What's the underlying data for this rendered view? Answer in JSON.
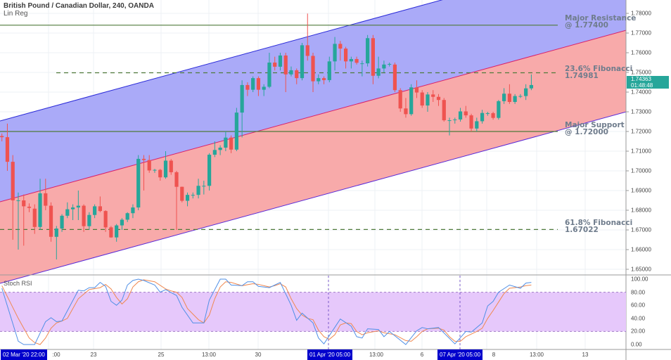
{
  "header": {
    "title": "British Pound / Canadian Dollar, 240, OANDA",
    "study": "Lin Reg"
  },
  "colors": {
    "up": "#26a69a",
    "down": "#ef5350",
    "channel_upper_fill": "#aaaaf8",
    "channel_lower_fill": "#f8aaaa",
    "level_line": "#4f7a3a",
    "note_text": "#6f7c8c",
    "stoch_k": "#4f8fe6",
    "stoch_d": "#f0884f",
    "stoch_band": "#e6c8fb",
    "time_highlight": "#0000cc"
  },
  "annotations": [
    {
      "line1": "Major Resistance",
      "line2": "@ 1.77400",
      "price": 1.774,
      "style": "solid"
    },
    {
      "line1": "23.6% Fibonacci",
      "line2": "1.74981",
      "price": 1.74981,
      "style": "dashed"
    },
    {
      "line1": "Major Support",
      "line2": "@ 1.72000",
      "price": 1.72,
      "style": "solid"
    },
    {
      "line1": "61.8% Fibonacci",
      "line2": "1.67022",
      "price": 1.67022,
      "style": "dashed"
    }
  ],
  "price_axis": {
    "ticks": [
      "1.78000",
      "1.77000",
      "1.76000",
      "1.75000",
      "1.74000",
      "1.73000",
      "1.72000",
      "1.71000",
      "1.70000",
      "1.69000",
      "1.68000",
      "1.67000",
      "1.66000",
      "1.65000"
    ],
    "last_price": "1.74363",
    "countdown": "01:48:48"
  },
  "stoch_axis": {
    "label": "Stoch RSI",
    "ticks": [
      "100.00",
      "80.00",
      "60.00",
      "40.00",
      "20.00",
      "0.00"
    ],
    "upper_band": 80,
    "lower_band": 20
  },
  "time_axis": {
    "ticks": [
      ":00",
      "23",
      "25",
      "13:00",
      "30",
      "13:00",
      "6",
      "8",
      "13:00",
      "13"
    ],
    "highlights": [
      "02 Mar '20  22:00",
      "01 Apr '20  05:00",
      "07 Apr '20  05:00"
    ]
  },
  "chart_data": {
    "type": "candlestick",
    "ylim": [
      1.6465,
      1.7868
    ],
    "candles_ohlc": [
      [
        1.7177,
        1.719,
        1.715,
        1.7171
      ],
      [
        1.7171,
        1.724,
        1.7,
        1.7046
      ],
      [
        1.7046,
        1.708,
        1.665,
        1.685
      ],
      [
        1.685,
        1.689,
        1.66,
        1.685
      ],
      [
        1.685,
        1.688,
        1.662,
        1.682
      ],
      [
        1.6818,
        1.6835,
        1.679,
        1.6812
      ],
      [
        1.6808,
        1.683,
        1.668,
        1.6715
      ],
      [
        1.6715,
        1.696,
        1.67,
        1.6886
      ],
      [
        1.6886,
        1.696,
        1.68,
        1.6823
      ],
      [
        1.6823,
        1.684,
        1.664,
        1.6665
      ],
      [
        1.6665,
        1.672,
        1.655,
        1.6707
      ],
      [
        1.6707,
        1.678,
        1.669,
        1.6772
      ],
      [
        1.6772,
        1.684,
        1.676,
        1.6805
      ],
      [
        1.6805,
        1.683,
        1.675,
        1.6814
      ],
      [
        1.6814,
        1.69,
        1.675,
        1.6823
      ],
      [
        1.6823,
        1.683,
        1.669,
        1.6719
      ],
      [
        1.6719,
        1.679,
        1.67,
        1.6776
      ],
      [
        1.6776,
        1.683,
        1.676,
        1.682
      ],
      [
        1.682,
        1.687,
        1.679,
        1.6796
      ],
      [
        1.6796,
        1.68,
        1.669,
        1.6713
      ],
      [
        1.6713,
        1.672,
        1.666,
        1.6662
      ],
      [
        1.6662,
        1.673,
        1.664,
        1.6723
      ],
      [
        1.6723,
        1.676,
        1.67,
        1.6752
      ],
      [
        1.6752,
        1.679,
        1.674,
        1.6785
      ],
      [
        1.6785,
        1.683,
        1.676,
        1.6814
      ],
      [
        1.6814,
        1.708,
        1.68,
        1.7061
      ],
      [
        1.7061,
        1.708,
        1.69,
        1.7055
      ],
      [
        1.7055,
        1.708,
        1.699,
        1.7002
      ],
      [
        1.7005,
        1.701,
        1.699,
        1.7005
      ],
      [
        1.7005,
        1.701,
        1.695,
        1.6967
      ],
      [
        1.6967,
        1.71,
        1.696,
        1.7052
      ],
      [
        1.7052,
        1.706,
        1.698,
        1.6993
      ],
      [
        1.6993,
        1.7,
        1.67,
        1.6919
      ],
      [
        1.6919,
        1.692,
        1.684,
        1.6848
      ],
      [
        1.6848,
        1.689,
        1.682,
        1.6878
      ],
      [
        1.6878,
        1.689,
        1.686,
        1.6878
      ],
      [
        1.6878,
        1.696,
        1.686,
        1.6924
      ],
      [
        1.6924,
        1.695,
        1.688,
        1.6924
      ],
      [
        1.6924,
        1.709,
        1.69,
        1.7082
      ],
      [
        1.7082,
        1.715,
        1.707,
        1.7106
      ],
      [
        1.7106,
        1.713,
        1.708,
        1.7118
      ],
      [
        1.7118,
        1.72,
        1.71,
        1.7169
      ],
      [
        1.7169,
        1.718,
        1.709,
        1.7108
      ],
      [
        1.7108,
        1.732,
        1.71,
        1.7296
      ],
      [
        1.7296,
        1.746,
        1.717,
        1.7436
      ],
      [
        1.7436,
        1.745,
        1.738,
        1.7412
      ],
      [
        1.7412,
        1.748,
        1.74,
        1.7471
      ],
      [
        1.7471,
        1.748,
        1.738,
        1.7412
      ],
      [
        1.7412,
        1.744,
        1.738,
        1.7427
      ],
      [
        1.7427,
        1.76,
        1.742,
        1.755
      ],
      [
        1.755,
        1.758,
        1.751,
        1.7529
      ],
      [
        1.7529,
        1.76,
        1.751,
        1.7586
      ],
      [
        1.7586,
        1.76,
        1.74,
        1.749
      ],
      [
        1.749,
        1.753,
        1.748,
        1.7511
      ],
      [
        1.7511,
        1.752,
        1.744,
        1.7471
      ],
      [
        1.7471,
        1.765,
        1.746,
        1.7638
      ],
      [
        1.7638,
        1.7799,
        1.756,
        1.7584
      ],
      [
        1.7584,
        1.76,
        1.74,
        1.7455
      ],
      [
        1.7455,
        1.749,
        1.744,
        1.7471
      ],
      [
        1.7471,
        1.748,
        1.744,
        1.7461
      ],
      [
        1.7461,
        1.758,
        1.745,
        1.7556
      ],
      [
        1.7556,
        1.768,
        1.751,
        1.7645
      ],
      [
        1.7645,
        1.766,
        1.756,
        1.7621
      ],
      [
        1.7621,
        1.763,
        1.752,
        1.7556
      ],
      [
        1.7556,
        1.758,
        1.752,
        1.7568
      ],
      [
        1.7568,
        1.758,
        1.754,
        1.7549
      ],
      [
        1.7546,
        1.756,
        1.748,
        1.7546
      ],
      [
        1.7546,
        1.769,
        1.753,
        1.7674
      ],
      [
        1.7674,
        1.769,
        1.744,
        1.7483
      ],
      [
        1.7483,
        1.758,
        1.747,
        1.752
      ],
      [
        1.752,
        1.756,
        1.75,
        1.754
      ],
      [
        1.7543,
        1.755,
        1.753,
        1.7543
      ],
      [
        1.754,
        1.755,
        1.74,
        1.741
      ],
      [
        1.741,
        1.742,
        1.73,
        1.7317
      ],
      [
        1.7317,
        1.737,
        1.727,
        1.7288
      ],
      [
        1.7288,
        1.744,
        1.728,
        1.7424
      ],
      [
        1.7424,
        1.746,
        1.737,
        1.7398
      ],
      [
        1.7398,
        1.741,
        1.732,
        1.7332
      ],
      [
        1.7332,
        1.74,
        1.73,
        1.7388
      ],
      [
        1.7388,
        1.741,
        1.735,
        1.7376
      ],
      [
        1.7376,
        1.739,
        1.733,
        1.736
      ],
      [
        1.736,
        1.737,
        1.725,
        1.7257
      ],
      [
        1.7257,
        1.727,
        1.718,
        1.7257
      ],
      [
        1.7261,
        1.727,
        1.724,
        1.7261
      ],
      [
        1.7261,
        1.732,
        1.725,
        1.7302
      ],
      [
        1.7302,
        1.733,
        1.727,
        1.7282
      ],
      [
        1.7282,
        1.729,
        1.72,
        1.7215
      ],
      [
        1.7215,
        1.727,
        1.72,
        1.7252
      ],
      [
        1.7252,
        1.731,
        1.724,
        1.7294
      ],
      [
        1.7293,
        1.73,
        1.728,
        1.7293
      ],
      [
        1.7293,
        1.73,
        1.726,
        1.7269
      ],
      [
        1.7269,
        1.736,
        1.726,
        1.7354
      ],
      [
        1.7354,
        1.742,
        1.734,
        1.7392
      ],
      [
        1.7392,
        1.744,
        1.734,
        1.735
      ],
      [
        1.735,
        1.739,
        1.734,
        1.738
      ],
      [
        1.738,
        1.739,
        1.737,
        1.738
      ],
      [
        1.738,
        1.744,
        1.736,
        1.7419
      ],
      [
        1.7419,
        1.749,
        1.741,
        1.7436
      ]
    ],
    "stoch_rsi": {
      "ylim": [
        0,
        100
      ],
      "k_points_by_bar": [
        [
          0,
          86
        ],
        [
          3,
          5
        ],
        [
          4,
          0
        ],
        [
          6,
          0
        ],
        [
          8,
          35
        ],
        [
          9,
          41
        ],
        [
          10,
          35
        ],
        [
          11,
          36
        ],
        [
          14,
          83
        ],
        [
          15,
          82
        ],
        [
          16,
          87
        ],
        [
          17,
          87
        ],
        [
          18,
          95
        ],
        [
          19,
          89
        ],
        [
          20,
          66
        ],
        [
          21,
          60
        ],
        [
          22,
          68
        ],
        [
          23,
          91
        ],
        [
          24,
          98
        ],
        [
          25,
          100
        ],
        [
          26,
          98
        ],
        [
          28,
          91
        ],
        [
          29,
          80
        ],
        [
          30,
          84
        ],
        [
          32,
          75
        ],
        [
          33,
          57
        ],
        [
          35,
          33
        ],
        [
          37,
          33
        ],
        [
          38,
          68
        ],
        [
          40,
          100
        ],
        [
          41,
          100
        ],
        [
          42,
          91
        ],
        [
          44,
          90
        ],
        [
          45,
          96
        ],
        [
          46,
          96
        ],
        [
          47,
          89
        ],
        [
          49,
          87
        ],
        [
          50,
          91
        ],
        [
          51,
          95
        ],
        [
          53,
          60
        ],
        [
          54,
          37
        ],
        [
          55,
          48
        ],
        [
          57,
          33
        ],
        [
          58,
          10
        ],
        [
          59,
          1
        ],
        [
          62,
          39
        ],
        [
          64,
          28
        ],
        [
          65,
          12
        ],
        [
          66,
          10
        ],
        [
          67,
          24
        ],
        [
          69,
          23
        ],
        [
          70,
          12
        ],
        [
          71,
          20
        ],
        [
          74,
          0
        ],
        [
          76,
          21
        ],
        [
          77,
          26
        ],
        [
          78,
          24
        ],
        [
          80,
          26
        ],
        [
          83,
          1
        ],
        [
          85,
          20
        ],
        [
          86,
          19
        ],
        [
          88,
          33
        ],
        [
          89,
          59
        ],
        [
          90,
          66
        ],
        [
          91,
          80
        ],
        [
          93,
          91
        ],
        [
          95,
          86
        ],
        [
          96,
          94
        ],
        [
          97,
          95
        ]
      ],
      "d_points_by_bar": [
        [
          0,
          90
        ],
        [
          3,
          40
        ],
        [
          5,
          10
        ],
        [
          6,
          3
        ],
        [
          7,
          0
        ],
        [
          8,
          10
        ],
        [
          9,
          25
        ],
        [
          10,
          33
        ],
        [
          11,
          36
        ],
        [
          12,
          40
        ],
        [
          14,
          70
        ],
        [
          16,
          84
        ],
        [
          18,
          87
        ],
        [
          19,
          92
        ],
        [
          20,
          85
        ],
        [
          21,
          72
        ],
        [
          22,
          62
        ],
        [
          23,
          70
        ],
        [
          24,
          88
        ],
        [
          25,
          96
        ],
        [
          26,
          99
        ],
        [
          28,
          96
        ],
        [
          30,
          85
        ],
        [
          31,
          82
        ],
        [
          32,
          80
        ],
        [
          33,
          72
        ],
        [
          34,
          55
        ],
        [
          36,
          38
        ],
        [
          37,
          33
        ],
        [
          38,
          45
        ],
        [
          39,
          70
        ],
        [
          40,
          88
        ],
        [
          41,
          96
        ],
        [
          42,
          95
        ],
        [
          44,
          90
        ],
        [
          46,
          93
        ],
        [
          47,
          92
        ],
        [
          49,
          88
        ],
        [
          50,
          90
        ],
        [
          51,
          93
        ],
        [
          52,
          88
        ],
        [
          53,
          70
        ],
        [
          54,
          55
        ],
        [
          55,
          45
        ],
        [
          56,
          40
        ],
        [
          57,
          38
        ],
        [
          58,
          22
        ],
        [
          59,
          12
        ],
        [
          60,
          8
        ],
        [
          61,
          15
        ],
        [
          62,
          30
        ],
        [
          63,
          33
        ],
        [
          64,
          32
        ],
        [
          65,
          20
        ],
        [
          66,
          15
        ],
        [
          67,
          18
        ],
        [
          69,
          21
        ],
        [
          70,
          18
        ],
        [
          72,
          15
        ],
        [
          74,
          6
        ],
        [
          75,
          5
        ],
        [
          76,
          12
        ],
        [
          77,
          20
        ],
        [
          78,
          24
        ],
        [
          80,
          25
        ],
        [
          81,
          22
        ],
        [
          82,
          12
        ],
        [
          83,
          5
        ],
        [
          84,
          5
        ],
        [
          85,
          12
        ],
        [
          87,
          20
        ],
        [
          88,
          25
        ],
        [
          89,
          40
        ],
        [
          90,
          52
        ],
        [
          91,
          65
        ],
        [
          92,
          78
        ],
        [
          93,
          86
        ],
        [
          95,
          88
        ],
        [
          96,
          90
        ],
        [
          97,
          91
        ]
      ]
    }
  }
}
